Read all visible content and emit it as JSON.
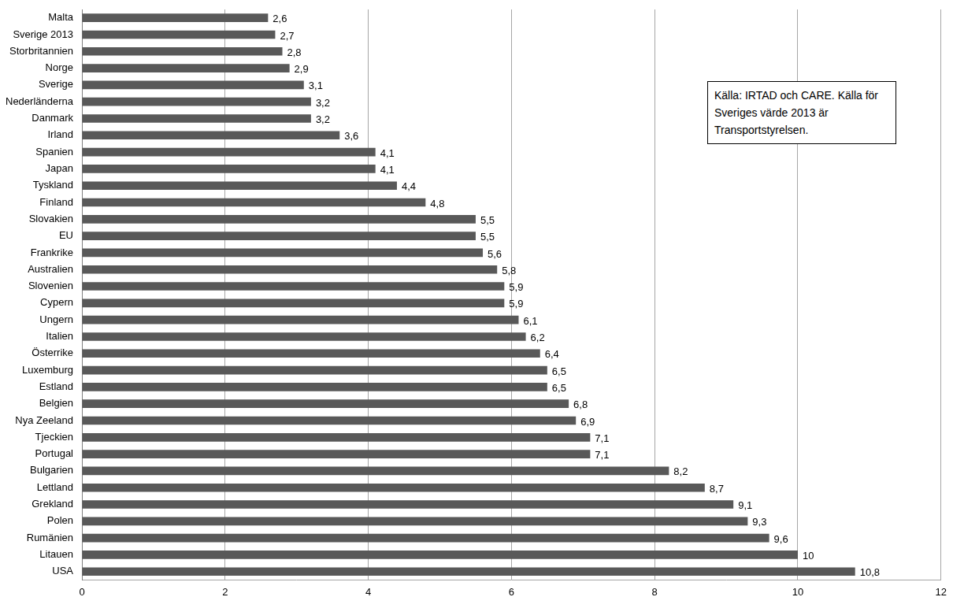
{
  "chart_data": {
    "type": "bar",
    "orientation": "horizontal",
    "categories": [
      "Malta",
      "Sverige 2013",
      "Storbritannien",
      "Norge",
      "Sverige",
      "Nederländerna",
      "Danmark",
      "Irland",
      "Spanien",
      "Japan",
      "Tyskland",
      "Finland",
      "Slovakien",
      "EU",
      "Frankrike",
      "Australien",
      "Slovenien",
      "Cypern",
      "Ungern",
      "Italien",
      "Österrike",
      "Luxemburg",
      "Estland",
      "Belgien",
      "Nya Zeeland",
      "Tjeckien",
      "Portugal",
      "Bulgarien",
      "Lettland",
      "Grekland",
      "Polen",
      "Rumänien",
      "Litauen",
      "USA"
    ],
    "values": [
      2.6,
      2.7,
      2.8,
      2.9,
      3.1,
      3.2,
      3.2,
      3.6,
      4.1,
      4.1,
      4.4,
      4.8,
      5.5,
      5.5,
      5.6,
      5.8,
      5.9,
      5.9,
      6.1,
      6.2,
      6.4,
      6.5,
      6.5,
      6.8,
      6.9,
      7.1,
      7.1,
      8.2,
      8.7,
      9.1,
      9.3,
      9.6,
      10,
      10.8
    ],
    "value_labels": [
      "2,6",
      "2,7",
      "2,8",
      "2,9",
      "3,1",
      "3,2",
      "3,2",
      "3,6",
      "4,1",
      "4,1",
      "4,4",
      "4,8",
      "5,5",
      "5,5",
      "5,6",
      "5,8",
      "5,9",
      "5,9",
      "6,1",
      "6,2",
      "6,4",
      "6,5",
      "6,5",
      "6,8",
      "6,9",
      "7,1",
      "7,1",
      "8,2",
      "8,7",
      "9,1",
      "9,3",
      "9,6",
      "10",
      "10,8"
    ],
    "color": "#595959",
    "xlim": [
      0,
      12
    ],
    "xticks": [
      0,
      2,
      4,
      6,
      8,
      10,
      12
    ],
    "grid": true,
    "data_labels": true,
    "annotations": [
      "Källa: IRTAD och CARE. Källa för  Sveriges värde 2013 är Transportstyrelsen."
    ]
  }
}
